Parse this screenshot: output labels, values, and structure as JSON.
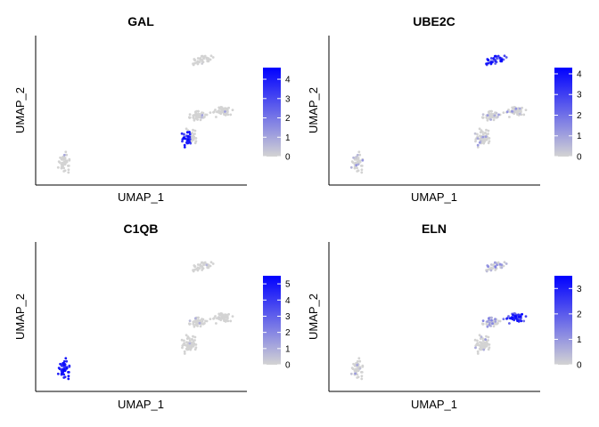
{
  "chart_data": [
    {
      "type": "scatter",
      "title": "GAL",
      "xlabel": "UMAP_1",
      "ylabel": "UMAP_2",
      "legend_ticks": [
        "4",
        "3",
        "2",
        "1",
        "0"
      ],
      "legend_max": 4.6,
      "legend_placement": "right",
      "colors": {
        "low": "#d3d3d3",
        "high": "#0000ff"
      },
      "hot": "lower-left edge of the middle cluster"
    },
    {
      "type": "scatter",
      "title": "UBE2C",
      "xlabel": "UMAP_1",
      "ylabel": "UMAP_2",
      "legend_ticks": [
        "4",
        "3",
        "2",
        "1",
        "0"
      ],
      "legend_max": 4.3,
      "legend_placement": "right",
      "colors": {
        "low": "#d3d3d3",
        "high": "#0000ff"
      },
      "hot": "top cluster"
    },
    {
      "type": "scatter",
      "title": "C1QB",
      "xlabel": "UMAP_1",
      "ylabel": "UMAP_2",
      "legend_ticks": [
        "5",
        "4",
        "3",
        "2",
        "1",
        "0"
      ],
      "legend_max": 5.5,
      "legend_placement": "right",
      "colors": {
        "low": "#d3d3d3",
        "high": "#0000ff"
      },
      "hot": "lower-left cluster"
    },
    {
      "type": "scatter",
      "title": "ELN",
      "xlabel": "UMAP_1",
      "ylabel": "UMAP_2",
      "legend_ticks": [
        "3",
        "2",
        "1",
        "0"
      ],
      "legend_max": 3.5,
      "legend_placement": "right",
      "colors": {
        "low": "#d3d3d3",
        "high": "#0000ff"
      },
      "hot": "right lobe of the middle cluster"
    }
  ]
}
